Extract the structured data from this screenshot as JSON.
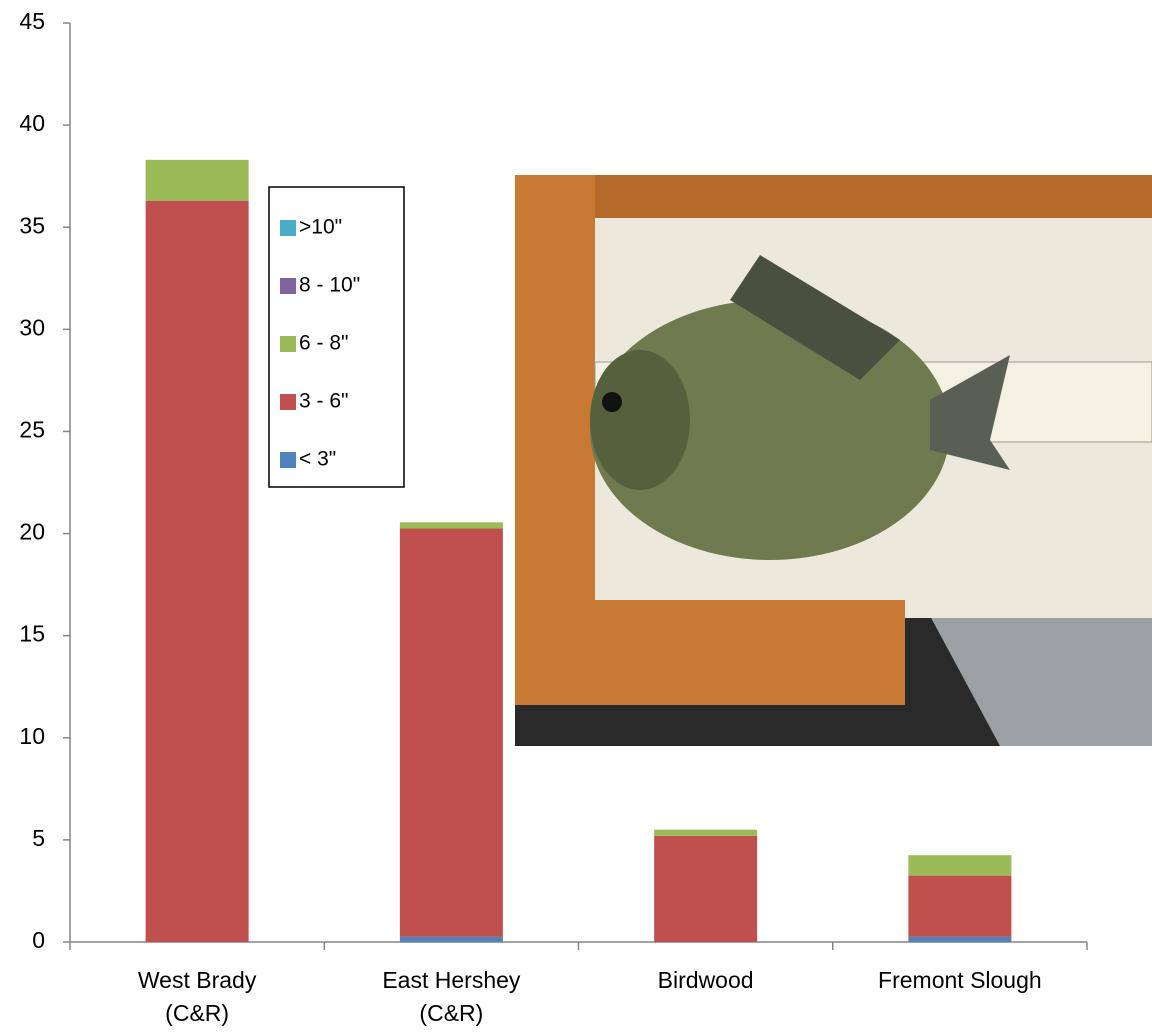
{
  "chart_data": {
    "type": "stacked_bar",
    "categories": [
      [
        "West Brady",
        "(C&R)"
      ],
      [
        "East Hershey",
        "(C&R)"
      ],
      [
        "Birdwood"
      ],
      [
        "Fremont Slough"
      ]
    ],
    "series": [
      {
        "name": "< 3\"",
        "color": "#4f81bd",
        "values": [
          0,
          0.25,
          0,
          0.25
        ]
      },
      {
        "name": "3 - 6\"",
        "color": "#c0504d",
        "values": [
          36.3,
          20,
          5.2,
          3
        ]
      },
      {
        "name": "6 - 8\"",
        "color": "#9bbb59",
        "values": [
          2,
          0.3,
          0.3,
          1
        ]
      },
      {
        "name": "8 - 10\"",
        "color": "#8064a2",
        "values": [
          0,
          0,
          0,
          0
        ]
      },
      {
        "name": ">10\"",
        "color": "#4bacc6",
        "values": [
          0,
          0,
          0,
          0
        ]
      }
    ],
    "ylim": [
      0,
      45
    ],
    "yticks": [
      0,
      5,
      10,
      15,
      20,
      25,
      30,
      35,
      40,
      45
    ],
    "legend": "inside-left"
  }
}
